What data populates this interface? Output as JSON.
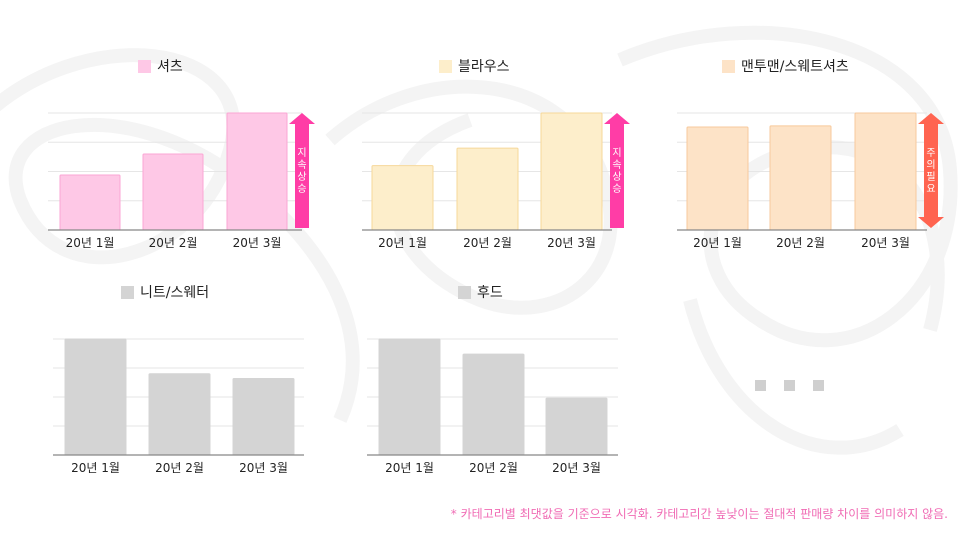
{
  "colors": {
    "shirt_fill": "#fec8e6",
    "shirt_stroke": "#fba6d4",
    "blouse_fill": "#fdeecb",
    "blouse_stroke": "#f6d89a",
    "mtm_fill": "#fde3c7",
    "mtm_stroke": "#f7c99c",
    "gray_fill": "#d4d4d4",
    "arrow_pink": "#ff3da6",
    "arrow_red": "#ff6450",
    "grid": "#e6e6e6",
    "axis": "#888888",
    "footnote": "#f06bb4"
  },
  "chart_data": [
    {
      "type": "bar",
      "legend": "셔츠",
      "categories": [
        "20년 1월",
        "20년 2월",
        "20년 3월"
      ],
      "values": [
        47,
        65,
        100
      ],
      "ylim": [
        0,
        100
      ],
      "annotation": {
        "text": "지속상승",
        "kind": "up-arrow",
        "color": "arrow_pink"
      },
      "fill": "shirt_fill",
      "stroke": "shirt_stroke"
    },
    {
      "type": "bar",
      "legend": "블라우스",
      "categories": [
        "20년 1월",
        "20년 2월",
        "20년 3월"
      ],
      "values": [
        55,
        70,
        100
      ],
      "ylim": [
        0,
        100
      ],
      "annotation": {
        "text": "지속상승",
        "kind": "up-arrow",
        "color": "arrow_pink"
      },
      "fill": "blouse_fill",
      "stroke": "blouse_stroke"
    },
    {
      "type": "bar",
      "legend": "맨투맨/스웨트셔츠",
      "categories": [
        "20년 1월",
        "20년 2월",
        "20년 3월"
      ],
      "values": [
        88,
        89,
        100
      ],
      "ylim": [
        0,
        100
      ],
      "annotation": {
        "text": "주의필요",
        "kind": "double-arrow",
        "color": "arrow_red"
      },
      "fill": "mtm_fill",
      "stroke": "mtm_stroke"
    },
    {
      "type": "bar",
      "legend": "니트/스웨터",
      "categories": [
        "20년 1월",
        "20년 2월",
        "20년 3월"
      ],
      "values": [
        100,
        70,
        66
      ],
      "ylim": [
        0,
        100
      ],
      "fill": "gray_fill",
      "stroke": "gray_fill"
    },
    {
      "type": "bar",
      "legend": "후드",
      "categories": [
        "20년 1월",
        "20년 2월",
        "20년 3월"
      ],
      "values": [
        100,
        87,
        49
      ],
      "ylim": [
        0,
        100
      ],
      "fill": "gray_fill",
      "stroke": "gray_fill"
    }
  ],
  "footnote": "* 카테고리별 최댓값을 기준으로 시각화. 카테고리간 높낮이는 절대적 판매량 차이를 의미하지 않음."
}
